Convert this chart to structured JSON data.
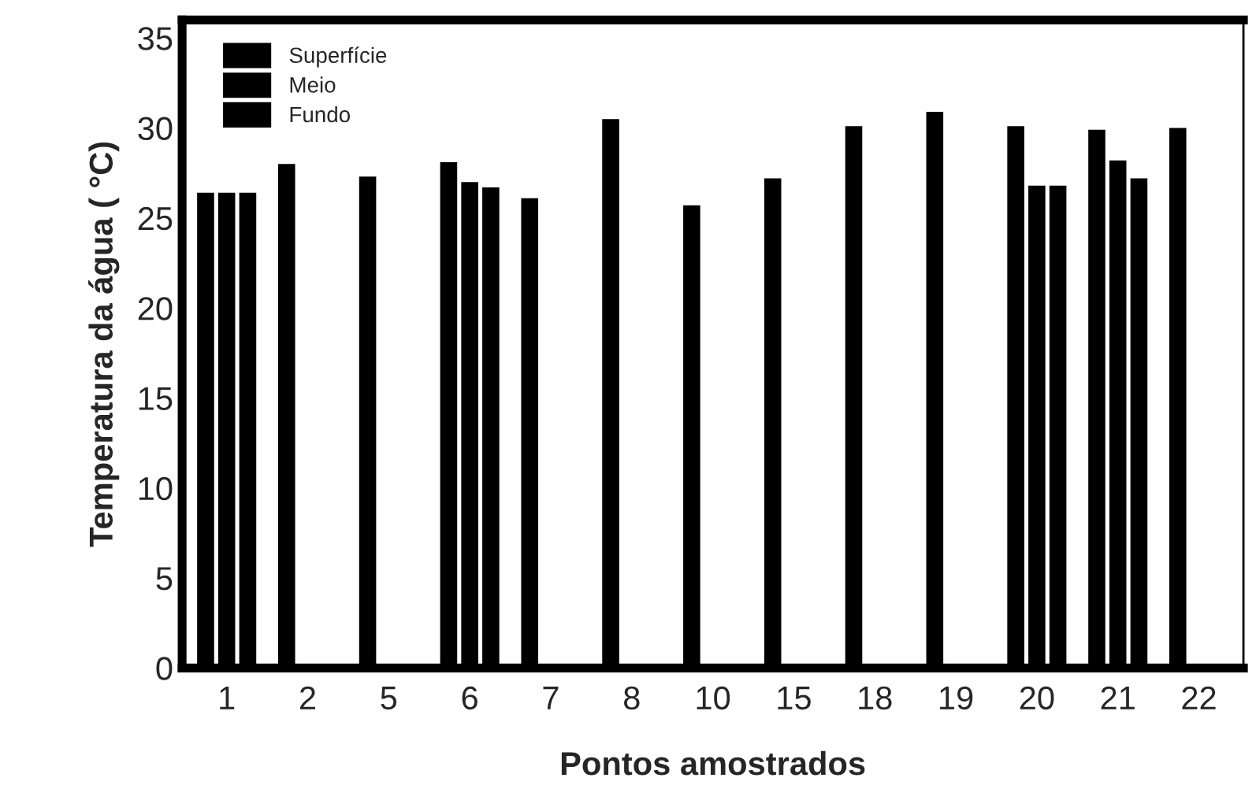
{
  "chart_data": {
    "type": "bar",
    "xlabel": "Pontos amostrados",
    "ylabel": "Temperatura da água ( °C)",
    "categories": [
      "1",
      "2",
      "5",
      "6",
      "7",
      "8",
      "10",
      "15",
      "18",
      "19",
      "20",
      "21",
      "22"
    ],
    "series": [
      {
        "name": "Superfície",
        "color": "#000000",
        "values": [
          26.4,
          28.0,
          27.3,
          28.1,
          26.1,
          30.5,
          25.7,
          27.2,
          30.1,
          30.9,
          30.1,
          29.9,
          30.0
        ]
      },
      {
        "name": "Meio",
        "color": "#000000",
        "values": [
          26.4,
          null,
          null,
          27.0,
          null,
          null,
          null,
          null,
          null,
          null,
          26.8,
          28.2,
          null
        ]
      },
      {
        "name": "Fundo",
        "color": "#000000",
        "values": [
          26.4,
          null,
          null,
          26.7,
          null,
          null,
          null,
          null,
          null,
          null,
          26.8,
          27.2,
          null
        ]
      }
    ],
    "ylim": [
      0,
      36
    ],
    "yticks": [
      0,
      5,
      10,
      15,
      20,
      25,
      30,
      35
    ],
    "grid": false,
    "legend": "top left"
  }
}
